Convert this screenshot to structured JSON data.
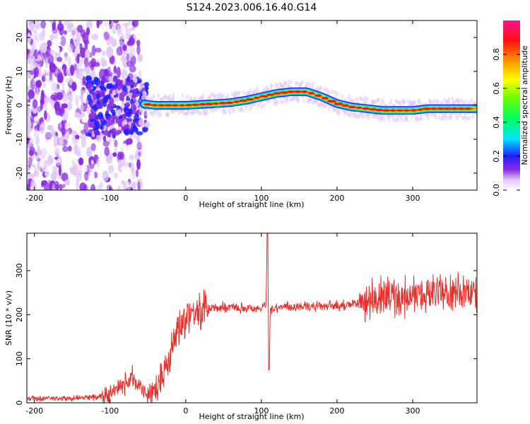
{
  "figure": {
    "title": "S124.2023.006.16.40.G14"
  },
  "colors": {
    "snr_line": "#e8302a",
    "background": "#ffffff",
    "axis": "#000000"
  },
  "chart_data": [
    {
      "type": "heatmap",
      "xlabel": "Height of straight line (km)",
      "ylabel": "Frequency (Hz)",
      "xlim": [
        -210,
        385
      ],
      "ylim": [
        -25,
        25
      ],
      "x_ticks": [
        -200,
        -100,
        0,
        100,
        200,
        300
      ],
      "y_ticks": [
        20,
        10,
        0,
        -10,
        -20
      ],
      "colorbar": {
        "label": "Normalized spectral amplitude",
        "range": [
          0,
          1
        ],
        "ticks": [
          "0.0",
          "0.2",
          "0.4",
          "0.6",
          "0.8"
        ],
        "colormap": "rainbow"
      },
      "ridge_frequency_profile": {
        "x": [
          -60,
          -40,
          0,
          40,
          60,
          80,
          100,
          120,
          140,
          160,
          180,
          200,
          220,
          240,
          260,
          280,
          300,
          320,
          340,
          360,
          385
        ],
        "y": [
          0.5,
          0.0,
          0.0,
          0.5,
          0.8,
          1.5,
          2.5,
          3.5,
          4.0,
          4.0,
          2.5,
          0.5,
          -0.5,
          -1.0,
          -1.5,
          -1.5,
          -1.5,
          -1.0,
          -1.0,
          -1.0,
          -1.0
        ]
      }
    },
    {
      "type": "line",
      "xlabel": "Height of straight line (km)",
      "ylabel": "SNR (10 * v/v)",
      "xlim": [
        -210,
        385
      ],
      "ylim": [
        0,
        385
      ],
      "x_ticks": [
        -200,
        -100,
        0,
        100,
        200,
        300
      ],
      "y_ticks": [
        0,
        100,
        200,
        300
      ],
      "series": [
        {
          "x": [
            -210,
            -150,
            -110,
            -90,
            -80,
            -70,
            -60,
            -50,
            -40,
            -30,
            -20,
            -10,
            0,
            10,
            20,
            30,
            50,
            80,
            100,
            106,
            108,
            110,
            112,
            130,
            160,
            200,
            230,
            250,
            270,
            290,
            310,
            330,
            350,
            370,
            385
          ],
          "y": [
            10,
            10,
            14,
            28,
            45,
            58,
            35,
            18,
            30,
            60,
            120,
            170,
            200,
            210,
            205,
            212,
            218,
            215,
            215,
            220,
            385,
            75,
            215,
            218,
            218,
            220,
            225,
            235,
            240,
            238,
            245,
            250,
            245,
            255,
            245
          ]
        }
      ]
    }
  ]
}
